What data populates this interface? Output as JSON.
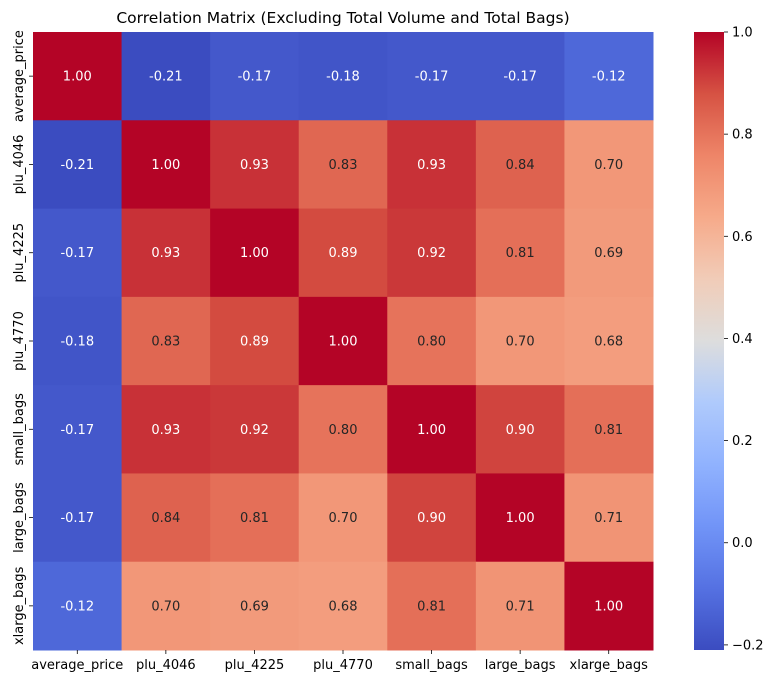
{
  "chart_data": {
    "type": "heatmap",
    "title": "Correlation Matrix (Excluding Total Volume and Total Bags)",
    "x_labels": [
      "average_price",
      "plu_4046",
      "plu_4225",
      "plu_4770",
      "small_bags",
      "large_bags",
      "xlarge_bags"
    ],
    "y_labels": [
      "average_price",
      "plu_4046",
      "plu_4225",
      "plu_4770",
      "small_bags",
      "large_bags",
      "xlarge_bags"
    ],
    "values": [
      [
        1.0,
        -0.21,
        -0.17,
        -0.18,
        -0.17,
        -0.17,
        -0.12
      ],
      [
        -0.21,
        1.0,
        0.93,
        0.83,
        0.93,
        0.84,
        0.7
      ],
      [
        -0.17,
        0.93,
        1.0,
        0.89,
        0.92,
        0.81,
        0.69
      ],
      [
        -0.18,
        0.83,
        0.89,
        1.0,
        0.8,
        0.7,
        0.68
      ],
      [
        -0.17,
        0.93,
        0.92,
        0.8,
        1.0,
        0.9,
        0.81
      ],
      [
        -0.17,
        0.84,
        0.81,
        0.7,
        0.9,
        1.0,
        0.71
      ],
      [
        -0.12,
        0.7,
        0.69,
        0.68,
        0.81,
        0.71,
        1.0
      ]
    ],
    "annotation_format": "0.00",
    "colormap": "coolwarm",
    "colorbar": {
      "range": [
        -0.21,
        1.0
      ],
      "tick_values": [
        1.0,
        0.8,
        0.6,
        0.4,
        0.2,
        0.0,
        -0.2
      ],
      "tick_labels": [
        "1.0",
        "0.8",
        "0.6",
        "0.4",
        "0.2",
        "0.0",
        "−0.2"
      ]
    }
  }
}
